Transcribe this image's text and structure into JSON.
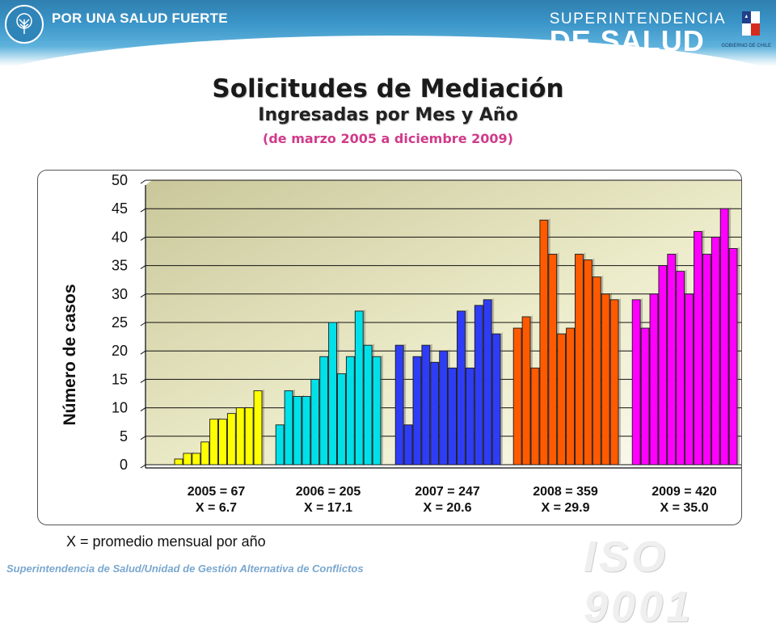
{
  "header": {
    "slogan": "POR UNA SALUD FUERTE",
    "brand_top": "SUPERINTENDENCIA",
    "brand_bottom": "DE SALUD",
    "gov_label": "GOBIERNO DE CHILE",
    "colors": {
      "band": "#3b95c8"
    }
  },
  "titles": {
    "main": "Solicitudes de Mediación",
    "sub": "Ingresadas por Mes y Año",
    "range": "(de marzo 2005 a diciembre 2009)"
  },
  "chart_data": {
    "type": "bar",
    "ylabel": "Número de casos",
    "ylim": [
      0,
      50
    ],
    "yticks": [
      "0",
      "5",
      "10",
      "15",
      "20",
      "25",
      "30",
      "35",
      "40",
      "45",
      "50"
    ],
    "grid": true,
    "series": [
      {
        "year_label": "2005 = 67",
        "avg_label": "X = 6.7",
        "color": "#ffff00",
        "values": [
          1,
          2,
          2,
          4,
          8,
          8,
          9,
          10,
          10,
          13
        ]
      },
      {
        "year_label": "2006 = 205",
        "avg_label": "X = 17.1",
        "color": "#00e0e8",
        "values": [
          7,
          13,
          12,
          12,
          15,
          19,
          25,
          16,
          19,
          27,
          21,
          19
        ]
      },
      {
        "year_label": "2007 = 247",
        "avg_label": "X = 20.6",
        "color": "#2e3df5",
        "values": [
          21,
          7,
          19,
          21,
          18,
          20,
          17,
          27,
          17,
          28,
          29,
          23
        ]
      },
      {
        "year_label": "2008 = 359",
        "avg_label": "X = 29.9",
        "color": "#ff5a00",
        "values": [
          24,
          26,
          17,
          43,
          37,
          23,
          24,
          37,
          36,
          33,
          30,
          29
        ]
      },
      {
        "year_label": "2009 = 420",
        "avg_label": "X = 35.0",
        "color": "#ff00ff",
        "values": [
          29,
          24,
          30,
          35,
          37,
          34,
          30,
          41,
          37,
          40,
          45,
          38
        ]
      }
    ]
  },
  "footnote": "X = promedio mensual por año",
  "footer_credit": "Superintendencia de Salud/Unidad de Gestión Alternativa de Conflictos",
  "watermark": "ISO 9001"
}
